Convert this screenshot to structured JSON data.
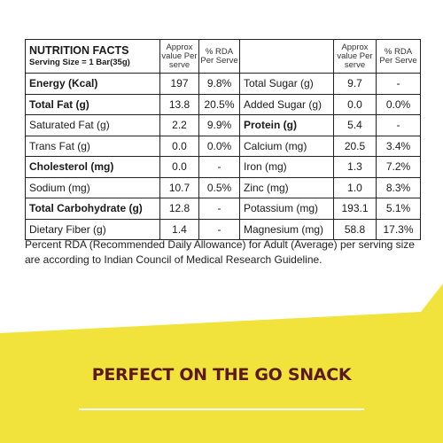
{
  "table": {
    "title": "NUTRITION FACTS",
    "serving_size": "Serving Size = 1 Bar(35g)",
    "col_approx": "Approx value Per serve",
    "col_rda": "% RDA Per Serve",
    "left_rows": [
      {
        "name": "Energy (Kcal)",
        "value": "197",
        "rda": "9.8%",
        "bold": true
      },
      {
        "name": "Total Fat (g)",
        "value": "13.8",
        "rda": "20.5%",
        "bold": true
      },
      {
        "name": "Saturated Fat (g)",
        "value": "2.2",
        "rda": "9.9%",
        "bold": false
      },
      {
        "name": "Trans Fat (g)",
        "value": "0.0",
        "rda": "0.0%",
        "bold": false
      },
      {
        "name": "Cholesterol (mg)",
        "value": "0.0",
        "rda": "-",
        "bold": true
      },
      {
        "name": "Sodium (mg)",
        "value": "10.7",
        "rda": "0.5%",
        "bold": false
      },
      {
        "name": "Total Carbohydrate (g)",
        "value": "12.8",
        "rda": "-",
        "bold": true
      },
      {
        "name": "Dietary Fiber (g)",
        "value": "1.4",
        "rda": "-",
        "bold": false
      }
    ],
    "right_rows": [
      {
        "name": "Total Sugar (g)",
        "value": "9.7",
        "rda": "-",
        "bold": false
      },
      {
        "name": "Added Sugar (g)",
        "value": "0.0",
        "rda": "0.0%",
        "bold": false
      },
      {
        "name": "Protein (g)",
        "value": "5.4",
        "rda": "-",
        "bold": true
      },
      {
        "name": "Calcium (mg)",
        "value": "20.5",
        "rda": "3.4%",
        "bold": false
      },
      {
        "name": "Iron (mg)",
        "value": "1.3",
        "rda": "7.2%",
        "bold": false
      },
      {
        "name": "Zinc (mg)",
        "value": "1.0",
        "rda": "8.3%",
        "bold": false
      },
      {
        "name": "Potassium (mg)",
        "value": "193.1",
        "rda": "5.1%",
        "bold": false
      },
      {
        "name": "Magnesium (mg)",
        "value": "58.8",
        "rda": "17.3%",
        "bold": false
      }
    ]
  },
  "note": "Percent RDA (Recommended Daily Allowance) for Adult (Average) per serving size are according to Indian Council of Medical Research Guideline.",
  "tagline": "PERFECT ON THE GO SNACK",
  "colors": {
    "band_yellow": "#f2e33c",
    "tagline": "#5a1a1f",
    "underline": "#ffffff",
    "border": "#222222"
  }
}
